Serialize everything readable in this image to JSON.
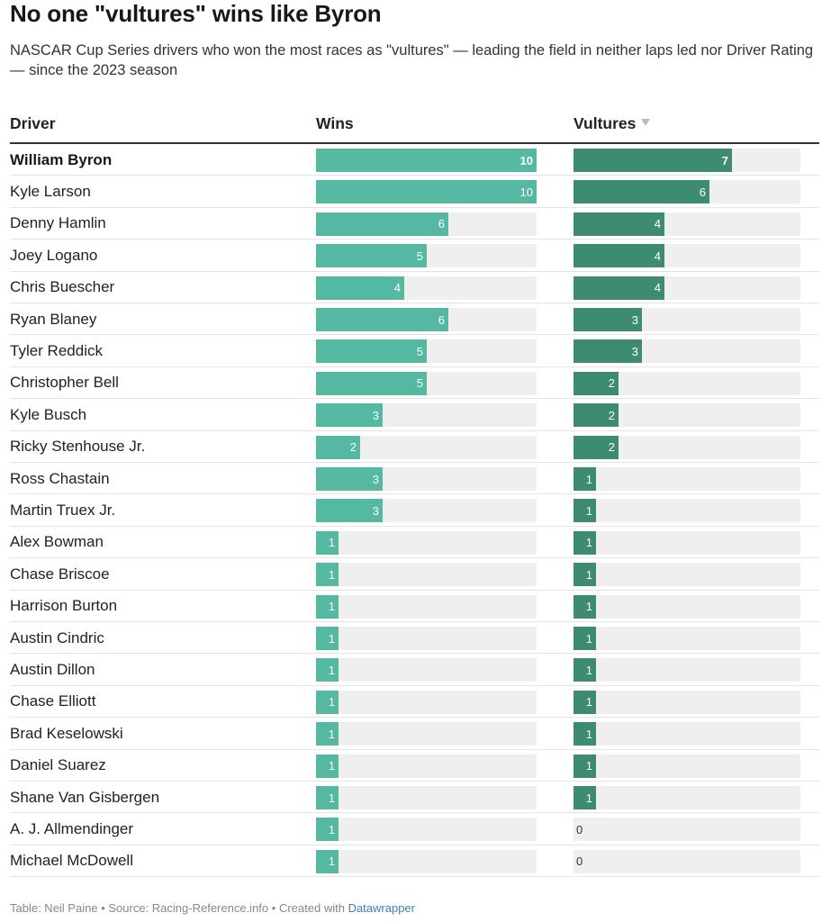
{
  "header": {
    "title": "No one \"vultures\" wins like Byron",
    "subtitle": "NASCAR Cup Series drivers who won the most races as \"vultures\" — leading the field in neither laps led nor Driver Rating — since the 2023 season"
  },
  "columns": {
    "driver": "Driver",
    "wins": "Wins",
    "vultures": "Vultures"
  },
  "footer": {
    "table_credit": "Table: Neil Paine",
    "separator": "•",
    "source": "Source: Racing-Reference.info",
    "created_with": "Created with",
    "tool": "Datawrapper"
  },
  "colors": {
    "wins_bar": "#55b9a1",
    "vultures_bar": "#3d8c72",
    "track": "#efefef"
  },
  "chart_data": {
    "type": "table",
    "wins_max": 10,
    "vultures_max": 7,
    "sorted_by": "vultures",
    "rows": [
      {
        "driver": "William Byron",
        "wins": 10,
        "vultures": 7,
        "highlight": true
      },
      {
        "driver": "Kyle Larson",
        "wins": 10,
        "vultures": 6
      },
      {
        "driver": "Denny Hamlin",
        "wins": 6,
        "vultures": 4
      },
      {
        "driver": "Joey Logano",
        "wins": 5,
        "vultures": 4
      },
      {
        "driver": "Chris Buescher",
        "wins": 4,
        "vultures": 4
      },
      {
        "driver": "Ryan Blaney",
        "wins": 6,
        "vultures": 3
      },
      {
        "driver": "Tyler Reddick",
        "wins": 5,
        "vultures": 3
      },
      {
        "driver": "Christopher Bell",
        "wins": 5,
        "vultures": 2
      },
      {
        "driver": "Kyle Busch",
        "wins": 3,
        "vultures": 2
      },
      {
        "driver": "Ricky Stenhouse Jr.",
        "wins": 2,
        "vultures": 2
      },
      {
        "driver": "Ross Chastain",
        "wins": 3,
        "vultures": 1
      },
      {
        "driver": "Martin Truex Jr.",
        "wins": 3,
        "vultures": 1
      },
      {
        "driver": "Alex Bowman",
        "wins": 1,
        "vultures": 1
      },
      {
        "driver": "Chase Briscoe",
        "wins": 1,
        "vultures": 1
      },
      {
        "driver": "Harrison Burton",
        "wins": 1,
        "vultures": 1
      },
      {
        "driver": "Austin Cindric",
        "wins": 1,
        "vultures": 1
      },
      {
        "driver": "Austin Dillon",
        "wins": 1,
        "vultures": 1
      },
      {
        "driver": "Chase Elliott",
        "wins": 1,
        "vultures": 1
      },
      {
        "driver": "Brad Keselowski",
        "wins": 1,
        "vultures": 1
      },
      {
        "driver": "Daniel Suarez",
        "wins": 1,
        "vultures": 1
      },
      {
        "driver": "Shane Van Gisbergen",
        "wins": 1,
        "vultures": 1
      },
      {
        "driver": "A. J. Allmendinger",
        "wins": 1,
        "vultures": 0
      },
      {
        "driver": "Michael McDowell",
        "wins": 1,
        "vultures": 0
      }
    ]
  }
}
